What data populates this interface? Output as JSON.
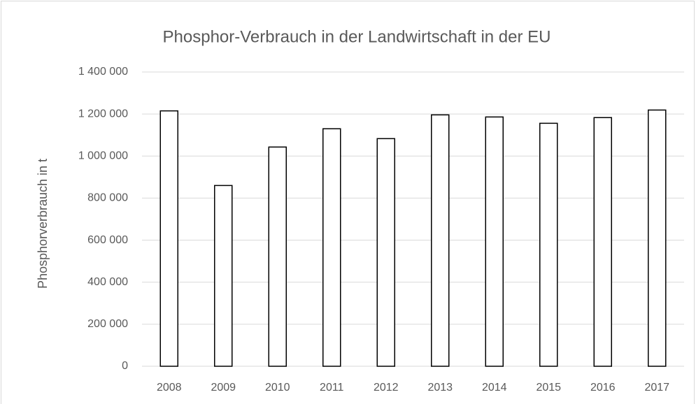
{
  "chart_data": {
    "type": "bar",
    "title": "Phosphor-Verbrauch in der Landwirtschaft in der EU",
    "y_label": "Phosphorverbrauch in t",
    "categories": [
      "2008",
      "2009",
      "2010",
      "2011",
      "2012",
      "2013",
      "2014",
      "2015",
      "2016",
      "2017"
    ],
    "values": [
      1215000,
      860000,
      1043000,
      1130000,
      1083000,
      1196000,
      1186000,
      1156000,
      1183000,
      1219000
    ],
    "color": "#ffffff",
    "edge_color": "#000000",
    "ylim": [
      0,
      1400000
    ],
    "yticks": [
      0,
      {
        "value": 200000,
        "label": "200 000"
      },
      {
        "value": 400000,
        "label": "400 000"
      },
      {
        "value": 600000,
        "label": "600 000"
      },
      {
        "value": 800000,
        "label": "800 000"
      },
      {
        "value": 1000000,
        "label": "1 000 000"
      },
      {
        "value": 1200000,
        "label": "1 200 000"
      },
      {
        "value": 1400000,
        "label": "1 400 000"
      }
    ],
    "grid": true
  }
}
